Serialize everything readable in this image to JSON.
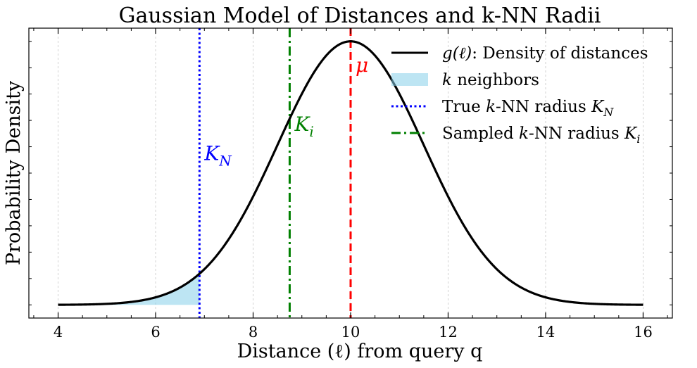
{
  "chart_data": {
    "type": "line",
    "title": "Gaussian Model of Distances and k-NN Radii",
    "xlabel": "Distance (ℓ) from query q",
    "ylabel": "Probability Density",
    "xlim": [
      3.4,
      16.6
    ],
    "ylim": [
      -0.05,
      1.05
    ],
    "xticks": [
      4,
      6,
      8,
      10,
      12,
      14,
      16
    ],
    "xtick_labels": [
      "4",
      "6",
      "8",
      "10",
      "12",
      "14",
      "16"
    ],
    "grid": "vertical dashed",
    "legend_position": "top-right",
    "curve": {
      "name": "g(ℓ): Density of distances",
      "mu": 10,
      "sigma": 1.5,
      "x_range": [
        4,
        16
      ],
      "color": "#000000",
      "sample_x": [
        4,
        5,
        6,
        6.9,
        7,
        8,
        8.75,
        9,
        10,
        11,
        12,
        13,
        14,
        15,
        16
      ],
      "sample_y_relative": [
        0.0003,
        0.0039,
        0.0286,
        0.118,
        0.1353,
        0.4111,
        0.7066,
        0.8007,
        1.0,
        0.8007,
        0.4111,
        0.1353,
        0.0286,
        0.0039,
        0.0003
      ]
    },
    "shaded_region": {
      "name": "k neighbors",
      "from": 4,
      "to": 6.9,
      "color": "#87cfea"
    },
    "vlines": [
      {
        "name": "True k-NN radius K_N",
        "x": 6.9,
        "color": "#0000ff",
        "style": "dotted",
        "label": "K",
        "label_sub": "N"
      },
      {
        "name": "Sampled k-NN radius K_i",
        "x": 8.75,
        "color": "#008000",
        "style": "dashdot",
        "label": "K",
        "label_sub": "i"
      },
      {
        "name": "mu",
        "x": 10,
        "color": "#ff0000",
        "style": "dashed",
        "label": "μ",
        "label_sub": ""
      }
    ],
    "legend": [
      {
        "kind": "line",
        "color": "#000000",
        "style": "solid",
        "prefix": "g(ℓ)",
        "text": ": Density of distances"
      },
      {
        "kind": "patch",
        "color": "#87cfea",
        "prefix": "k",
        "text": " neighbors"
      },
      {
        "kind": "line",
        "color": "#0000ff",
        "style": "dotted",
        "pre": "True ",
        "prefix": "k",
        "text": "-NN radius ",
        "var": "K",
        "sub": "N"
      },
      {
        "kind": "line",
        "color": "#008000",
        "style": "dashdot",
        "pre": "Sampled ",
        "prefix": "k",
        "text": "-NN radius ",
        "var": "K",
        "sub": "i"
      }
    ]
  }
}
